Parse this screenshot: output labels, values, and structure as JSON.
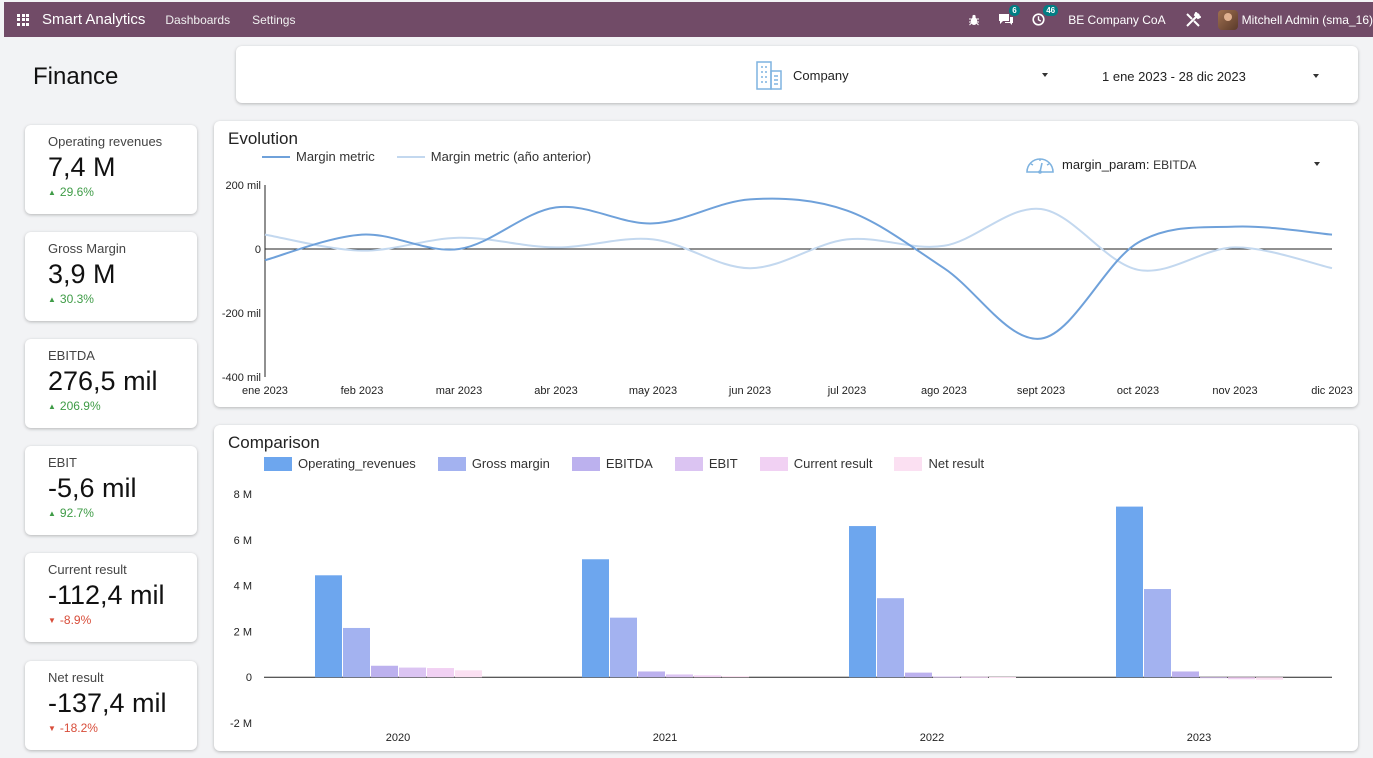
{
  "navbar": {
    "app_name": "Smart Analytics",
    "menus": [
      "Dashboards",
      "Settings"
    ],
    "messages_count": "6",
    "activities_count": "46",
    "company": "BE Company CoA",
    "user": "Mitchell Admin (sma_16)",
    "accent_color": "#714b67"
  },
  "page": {
    "title": "Finance"
  },
  "filters": {
    "company_label": "Company",
    "date_range": "1 ene 2023 - 28 dic 2023"
  },
  "kpis": [
    {
      "label": "Operating revenues",
      "value": "7,4 M",
      "change": "29.6%",
      "direction": "up"
    },
    {
      "label": "Gross Margin",
      "value": "3,9 M",
      "change": "30.3%",
      "direction": "up"
    },
    {
      "label": "EBITDA",
      "value": "276,5 mil",
      "change": "206.9%",
      "direction": "up"
    },
    {
      "label": "EBIT",
      "value": "-5,6 mil",
      "change": "92.7%",
      "direction": "up"
    },
    {
      "label": "Current result",
      "value": "-112,4 mil",
      "change": "-8.9%",
      "direction": "down"
    },
    {
      "label": "Net result",
      "value": "-137,4 mil",
      "change": "-18.2%",
      "direction": "down"
    }
  ],
  "evolution": {
    "title": "Evolution",
    "param_name": "margin_param:",
    "param_value": "EBITDA"
  },
  "comparison": {
    "title": "Comparison"
  },
  "chart_data": [
    {
      "type": "line",
      "title": "Evolution",
      "x": [
        "ene 2023",
        "feb 2023",
        "mar 2023",
        "abr 2023",
        "may 2023",
        "jun 2023",
        "jul 2023",
        "ago 2023",
        "sept 2023",
        "oct 2023",
        "nov 2023",
        "dic 2023"
      ],
      "yticks": [
        "200 mil",
        "0",
        "-200 mil",
        "-400 mil"
      ],
      "ylim": [
        -400000,
        200000
      ],
      "grid": false,
      "legend": "top-left",
      "series": [
        {
          "name": "Margin metric",
          "color": "#6fa1da",
          "values": [
            -35000,
            45000,
            0,
            130000,
            80000,
            155000,
            120000,
            -60000,
            -280000,
            20000,
            70000,
            45000
          ]
        },
        {
          "name": "Margin metric (año anterior)",
          "color": "#c3d8ef",
          "values": [
            45000,
            -5000,
            35000,
            5000,
            30000,
            -60000,
            30000,
            10000,
            125000,
            -65000,
            5000,
            -60000
          ]
        }
      ]
    },
    {
      "type": "bar",
      "title": "Comparison",
      "categories": [
        "2020",
        "2021",
        "2022",
        "2023"
      ],
      "yticks": [
        "8 M",
        "6 M",
        "4 M",
        "2 M",
        "0",
        "-2 M"
      ],
      "ylim": [
        -2000000,
        8000000
      ],
      "grid": false,
      "legend": "top-left",
      "series": [
        {
          "name": "Operating_revenues",
          "color": "#6da6ee",
          "values": [
            4450000,
            5150000,
            6600000,
            7450000
          ]
        },
        {
          "name": "Gross margin",
          "color": "#a3b2f0",
          "values": [
            2150000,
            2600000,
            3450000,
            3850000
          ]
        },
        {
          "name": "EBITDA",
          "color": "#bcb1ee",
          "values": [
            500000,
            250000,
            200000,
            250000
          ]
        },
        {
          "name": "EBIT",
          "color": "#dbc4f2",
          "values": [
            420000,
            120000,
            30000,
            -10000
          ]
        },
        {
          "name": "Current result",
          "color": "#f1d1f3",
          "values": [
            400000,
            80000,
            20000,
            -90000
          ]
        },
        {
          "name": "Net result",
          "color": "#fbe0f2",
          "values": [
            300000,
            50000,
            10000,
            -110000
          ]
        }
      ]
    }
  ]
}
